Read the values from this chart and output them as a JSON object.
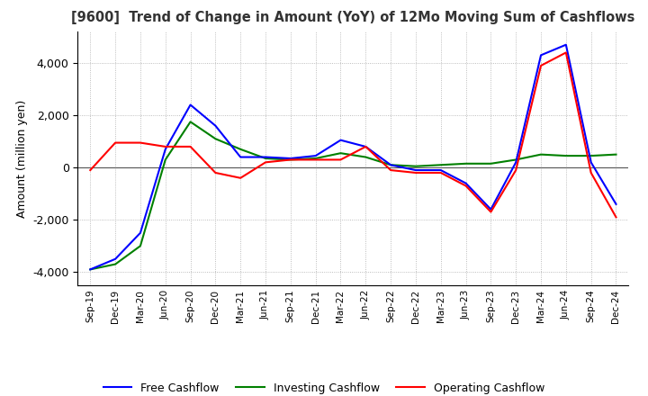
{
  "title": "[9600]  Trend of Change in Amount (YoY) of 12Mo Moving Sum of Cashflows",
  "ylabel": "Amount (million yen)",
  "ylim": [
    -4500,
    5200
  ],
  "yticks": [
    -4000,
    -2000,
    0,
    2000,
    4000
  ],
  "background_color": "#ffffff",
  "grid_color": "#aaaaaa",
  "x_labels": [
    "Sep-19",
    "Dec-19",
    "Mar-20",
    "Jun-20",
    "Sep-20",
    "Dec-20",
    "Mar-21",
    "Jun-21",
    "Sep-21",
    "Dec-21",
    "Mar-22",
    "Jun-22",
    "Sep-22",
    "Dec-22",
    "Mar-23",
    "Jun-23",
    "Sep-23",
    "Dec-23",
    "Mar-24",
    "Jun-24",
    "Sep-24",
    "Dec-24"
  ],
  "operating_cashflow": [
    -100,
    950,
    950,
    800,
    800,
    -200,
    -400,
    200,
    300,
    300,
    300,
    800,
    -100,
    -200,
    -200,
    -700,
    -1700,
    -100,
    3900,
    4400,
    -200,
    -1900
  ],
  "investing_cashflow": [
    -3900,
    -3700,
    -3000,
    300,
    1750,
    1100,
    700,
    350,
    300,
    350,
    550,
    400,
    100,
    50,
    100,
    150,
    150,
    300,
    500,
    450,
    450,
    500
  ],
  "free_cashflow": [
    -3900,
    -3500,
    -2500,
    700,
    2400,
    1600,
    400,
    400,
    350,
    450,
    1050,
    800,
    100,
    -100,
    -100,
    -600,
    -1600,
    200,
    4300,
    4700,
    200,
    -1400
  ],
  "operating_color": "#ff0000",
  "investing_color": "#008000",
  "free_color": "#0000ff",
  "line_width": 1.5
}
